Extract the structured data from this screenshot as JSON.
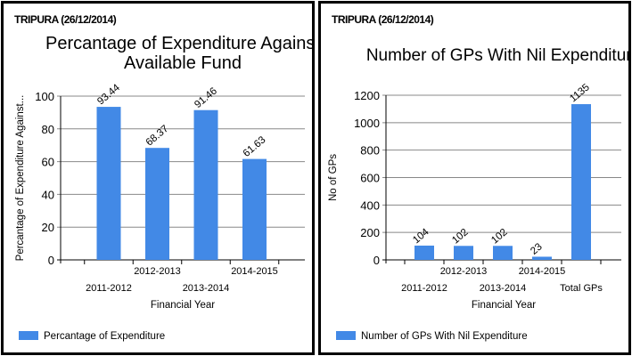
{
  "chart_data": [
    {
      "type": "bar",
      "header": "TRIPURA (26/12/2014)",
      "title_lines": [
        "Percantage of Expenditure Against",
        "Available Fund"
      ],
      "xlabel": "Financial Year",
      "ylabel": "Percantage of Expenditure Against...",
      "categories": [
        "2011-2012",
        "2012-2013",
        "2013-2014",
        "2014-2015"
      ],
      "values": [
        93.44,
        68.37,
        91.46,
        61.63
      ],
      "data_labels": [
        "93.44",
        "68.37",
        "91.46",
        "61.63"
      ],
      "ylim": [
        0,
        100
      ],
      "yticks": [
        0,
        20,
        40,
        60,
        80,
        100
      ],
      "legend": "Percantage of Expenditure",
      "legend_placement": "bottom-left",
      "color": "#4289e6"
    },
    {
      "type": "bar",
      "header": "TRIPURA (26/12/2014)",
      "title_lines": [
        "Number of GPs With Nil Expenditure"
      ],
      "xlabel": "Financial Year",
      "ylabel": "No of GPs",
      "categories": [
        "2011-2012",
        "2012-2013",
        "2013-2014",
        "2014-2015",
        "Total GPs"
      ],
      "values": [
        104,
        102,
        102,
        23,
        1135
      ],
      "data_labels": [
        "104",
        "102",
        "102",
        "23",
        "1135"
      ],
      "ylim": [
        0,
        1200
      ],
      "yticks": [
        0,
        200,
        400,
        600,
        800,
        1000,
        1200
      ],
      "legend": "Number of GPs With Nil Expenditure",
      "legend_placement": "bottom-left",
      "color": "#4289e6"
    }
  ]
}
